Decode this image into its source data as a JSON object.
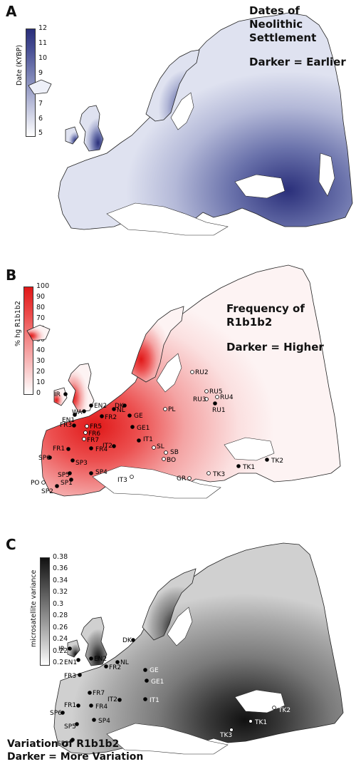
{
  "panels": {
    "a": {
      "letter": "A",
      "colorbar_title": "Date (KYBP)",
      "ticks": [
        "12",
        "11",
        "10",
        "9",
        "8",
        "7",
        "6",
        "5"
      ],
      "annotation": [
        "Dates of",
        "Neolithic",
        "Settlement",
        "",
        "Darker = Earlier"
      ],
      "colors": {
        "dark": "#2a2f7a",
        "light": "#eef0f8"
      }
    },
    "b": {
      "letter": "B",
      "colorbar_title": "% hg R1b1b2",
      "ticks": [
        "100",
        "90",
        "80",
        "70",
        "60",
        "50",
        "40",
        "30",
        "20",
        "10",
        "0"
      ],
      "annotation": [
        "Frequency of",
        "R1b1b2",
        "",
        "Darker = Higher"
      ],
      "colors": {
        "dark": "#e01818",
        "light": "#fdf0f0"
      },
      "sites": [
        "IR",
        "WA",
        "EN2",
        "EN1",
        "FR2",
        "FR3",
        "FR5",
        "FR6",
        "FR7",
        "DK",
        "NL",
        "GE",
        "GE1",
        "PL",
        "FR1",
        "FR4",
        "IT2",
        "IT1",
        "SP6",
        "SP3",
        "SP5",
        "SP1",
        "SP4",
        "IT3",
        "PO",
        "SP2",
        "SL",
        "SB",
        "BO",
        "GR",
        "TK3",
        "TK1",
        "TK2",
        "RU2",
        "RU5",
        "RU3",
        "RU4",
        "RU1"
      ]
    },
    "c": {
      "letter": "C",
      "colorbar_title": "microsatellite variance",
      "ticks": [
        "0.38",
        "0.36",
        "0.34",
        "0.32",
        "0.3",
        "0.28",
        "0.26",
        "0.24",
        "0.22",
        "0.2"
      ],
      "annotation": [
        "Variation of R1b1b2",
        "Darker = More Variation"
      ],
      "colors": {
        "dark": "#1a1a1a",
        "light": "#e8e8e8"
      },
      "sites": [
        "IR",
        "DK",
        "EN1",
        "EN2",
        "NL",
        "FR2",
        "GE",
        "GE1",
        "FR3",
        "FR7",
        "IT2",
        "IT1",
        "FR1",
        "FR4",
        "SP6",
        "SP5",
        "SP4",
        "SP2",
        "TK3",
        "TK1",
        "TK2"
      ]
    }
  }
}
